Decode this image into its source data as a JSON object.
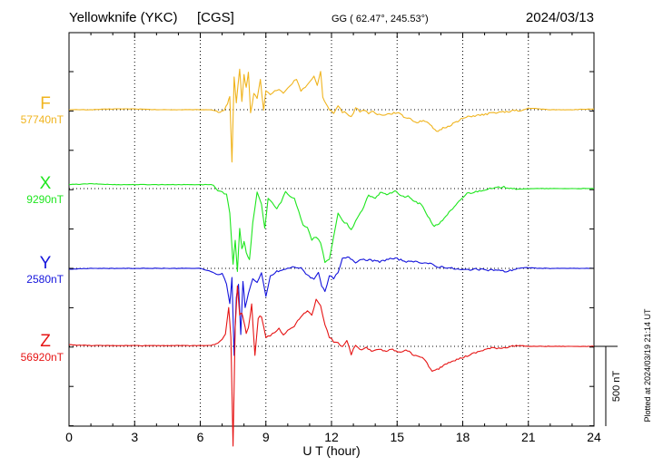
{
  "header": {
    "station": "Yellowknife (YKC)",
    "code": "[CGS]",
    "coords": "GG ( 62.47°, 245.53°)",
    "date": "2024/03/13"
  },
  "scale": {
    "value": 500,
    "label": "500 nT"
  },
  "footer": {
    "plotted": "Plotted at 2024/03/19 21:14 UT"
  },
  "chart_data": {
    "type": "line",
    "title": "Yellowknife (YKC)  [CGS]",
    "subtitle": "GG ( 62.47°, 245.53°)",
    "date": "2024/03/13",
    "xlabel": "U T (hour)",
    "xlim": [
      0,
      24
    ],
    "xticks": [
      "0",
      "3",
      "6",
      "9",
      "12",
      "15",
      "18",
      "21",
      "24"
    ],
    "grid": true,
    "units": "nT",
    "series": [
      {
        "name": "F",
        "baseline": "57740nT",
        "baseline_value": 57740,
        "color": "#f0b41e",
        "x": [
          0,
          1,
          2,
          3,
          4,
          5,
          5.5,
          6,
          6.5,
          6.9,
          7.1,
          7.25,
          7.35,
          7.45,
          7.55,
          7.65,
          7.8,
          7.9,
          8.0,
          8.1,
          8.2,
          8.3,
          8.45,
          8.6,
          8.75,
          8.9,
          9.0,
          9.2,
          9.4,
          9.6,
          9.8,
          10.0,
          10.2,
          10.4,
          10.6,
          10.8,
          11.0,
          11.2,
          11.35,
          11.5,
          11.6,
          11.75,
          11.9,
          12.1,
          12.3,
          12.5,
          12.7,
          12.9,
          13.1,
          13.3,
          13.5,
          13.7,
          13.9,
          14.1,
          14.4,
          14.7,
          15.0,
          15.3,
          15.6,
          15.9,
          16.2,
          16.5,
          16.8,
          17.1,
          17.4,
          17.7,
          18.0,
          18.4,
          18.8,
          19.2,
          19.6,
          20.0,
          20.3,
          20.6,
          21.0,
          21.5,
          22,
          23,
          24
        ],
        "y": [
          0,
          0,
          5,
          5,
          0,
          0,
          0,
          0,
          0,
          -15,
          0,
          40,
          80,
          -330,
          200,
          40,
          260,
          55,
          215,
          140,
          235,
          -20,
          100,
          75,
          185,
          -5,
          120,
          95,
          115,
          125,
          105,
          135,
          165,
          195,
          120,
          140,
          170,
          205,
          150,
          245,
          80,
          40,
          5,
          -25,
          25,
          -15,
          -20,
          -45,
          10,
          -10,
          0,
          -20,
          -15,
          -30,
          -30,
          -25,
          -15,
          -45,
          -55,
          -80,
          -65,
          -95,
          -140,
          -115,
          -100,
          -75,
          -55,
          -40,
          -35,
          -25,
          -15,
          -15,
          -5,
          -10,
          10,
          5,
          0,
          0,
          5
        ]
      },
      {
        "name": "X",
        "baseline": "9290nT",
        "baseline_value": 9290,
        "color": "#1ee61e",
        "x": [
          0,
          1,
          2,
          3,
          4,
          5,
          5.5,
          6,
          6.3,
          6.5,
          6.6,
          6.8,
          7.0,
          7.2,
          7.35,
          7.5,
          7.6,
          7.7,
          7.8,
          7.9,
          8.0,
          8.1,
          8.25,
          8.4,
          8.6,
          8.8,
          8.95,
          9.1,
          9.3,
          9.5,
          9.7,
          9.9,
          10.1,
          10.3,
          10.5,
          10.7,
          10.9,
          11.1,
          11.3,
          11.5,
          11.7,
          11.9,
          12.1,
          12.3,
          12.5,
          12.7,
          12.9,
          13.1,
          13.4,
          13.7,
          14.0,
          14.3,
          14.6,
          14.9,
          15.2,
          15.5,
          15.8,
          16.1,
          16.4,
          16.7,
          17.0,
          17.3,
          17.6,
          17.9,
          18.2,
          18.6,
          19.0,
          19.4,
          19.8,
          20.2,
          20.6,
          21,
          22,
          23,
          24
        ],
        "y": [
          25,
          30,
          25,
          25,
          25,
          25,
          25,
          25,
          25,
          25,
          20,
          -15,
          -25,
          -30,
          -150,
          -470,
          -330,
          -520,
          -250,
          -380,
          -330,
          -400,
          -450,
          -220,
          -20,
          -100,
          -250,
          -60,
          -90,
          -130,
          -80,
          -20,
          -50,
          -60,
          -140,
          -230,
          -240,
          -320,
          -300,
          -340,
          -460,
          -440,
          -300,
          -160,
          -200,
          -220,
          -260,
          -200,
          -140,
          -40,
          -60,
          -20,
          -40,
          -10,
          -50,
          -50,
          -80,
          -100,
          -170,
          -240,
          -210,
          -160,
          -120,
          -70,
          -30,
          -20,
          -5,
          0,
          10,
          5,
          -5,
          0,
          0,
          0,
          0
        ]
      },
      {
        "name": "Y",
        "baseline": "2580nT",
        "baseline_value": 2580,
        "color": "#1414dc",
        "x": [
          0,
          1,
          2,
          3,
          4,
          5,
          5.5,
          6,
          6.5,
          6.8,
          7.0,
          7.2,
          7.35,
          7.45,
          7.55,
          7.65,
          7.75,
          7.85,
          7.95,
          8.05,
          8.2,
          8.4,
          8.6,
          8.8,
          9.0,
          9.2,
          9.5,
          9.8,
          10.0,
          10.3,
          10.6,
          10.9,
          11.2,
          11.4,
          11.55,
          11.7,
          11.9,
          12.1,
          12.3,
          12.5,
          12.8,
          13.1,
          13.4,
          13.8,
          14.2,
          14.6,
          15.0,
          15.5,
          16.0,
          16.5,
          16.8,
          17.1,
          17.5,
          18.0,
          18.5,
          19.0,
          19.5,
          20.0,
          20.5,
          21.0,
          21.5,
          22,
          23,
          24
        ],
        "y": [
          -5,
          0,
          0,
          0,
          0,
          0,
          0,
          0,
          -20,
          -40,
          -30,
          -100,
          -220,
          -60,
          -540,
          -180,
          -100,
          -420,
          -80,
          -240,
          -160,
          -60,
          -90,
          -30,
          -180,
          -50,
          -20,
          -10,
          0,
          10,
          0,
          -40,
          -70,
          -20,
          -110,
          -150,
          -50,
          -60,
          -30,
          60,
          70,
          40,
          60,
          50,
          40,
          60,
          60,
          40,
          40,
          30,
          10,
          10,
          0,
          -10,
          -5,
          -10,
          -10,
          -20,
          0,
          5,
          0,
          0,
          0,
          0
        ]
      },
      {
        "name": "Z",
        "baseline": "56920nT",
        "baseline_value": 56920,
        "color": "#e61414",
        "x": [
          0,
          1,
          2,
          3,
          4,
          5,
          5.5,
          6,
          6.5,
          6.8,
          7.0,
          7.15,
          7.3,
          7.4,
          7.5,
          7.6,
          7.7,
          7.8,
          7.9,
          8.0,
          8.1,
          8.2,
          8.35,
          8.5,
          8.65,
          8.8,
          9.0,
          9.2,
          9.4,
          9.6,
          9.8,
          10.0,
          10.3,
          10.6,
          10.9,
          11.1,
          11.3,
          11.5,
          11.7,
          11.9,
          12.1,
          12.3,
          12.5,
          12.7,
          12.9,
          13.1,
          13.3,
          13.6,
          13.9,
          14.2,
          14.5,
          14.8,
          15.1,
          15.4,
          15.7,
          16.0,
          16.3,
          16.6,
          16.9,
          17.2,
          17.5,
          17.8,
          18.2,
          18.6,
          19.0,
          19.4,
          19.8,
          20.2,
          20.6,
          21,
          22,
          23,
          24
        ],
        "y": [
          10,
          5,
          5,
          5,
          5,
          5,
          5,
          5,
          5,
          20,
          40,
          80,
          240,
          60,
          -620,
          120,
          380,
          200,
          210,
          150,
          80,
          120,
          260,
          -60,
          180,
          190,
          60,
          70,
          90,
          110,
          70,
          100,
          130,
          190,
          220,
          200,
          290,
          260,
          130,
          60,
          30,
          20,
          0,
          40,
          -50,
          10,
          -20,
          -10,
          -30,
          -20,
          -30,
          -20,
          -40,
          -20,
          -50,
          -60,
          -90,
          -160,
          -140,
          -110,
          -90,
          -80,
          -60,
          -40,
          -20,
          -10,
          -10,
          0,
          5,
          0,
          0,
          0,
          0
        ]
      }
    ]
  }
}
